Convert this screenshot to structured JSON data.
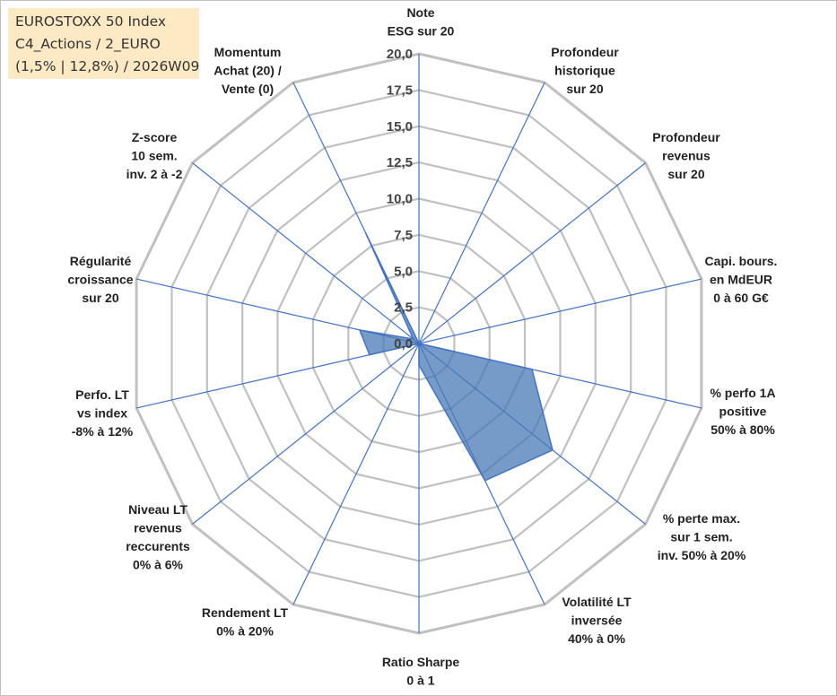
{
  "title_box": {
    "line1": "EUROSTOXX 50 Index",
    "line2": "C4_Actions / 2_EURO",
    "line3": "(1,5% | 12,8%) / 2026W09"
  },
  "chart_data": {
    "type": "radar",
    "rlim": [
      0,
      20
    ],
    "ticks": [
      "0,0",
      "2,5",
      "5,0",
      "7,5",
      "10,0",
      "12,5",
      "15,0",
      "17,5",
      "20,0"
    ],
    "grid": true,
    "grid_color": "#c0c0c0",
    "spoke_color": "#4472c4",
    "series_fill": "#4a7ab5",
    "series_stroke": "#4472c4",
    "categories": [
      {
        "lines": [
          "Note",
          "ESG sur 20"
        ],
        "anchor": "middle"
      },
      {
        "lines": [
          "Profondeur",
          "historique",
          "sur 20"
        ],
        "anchor": "middle"
      },
      {
        "lines": [
          "Profondeur",
          "revenus",
          "sur 20"
        ],
        "anchor": "middle"
      },
      {
        "lines": [
          "Capi. bours.",
          "en MdEUR",
          "0 à 60 G€"
        ],
        "anchor": "middle"
      },
      {
        "lines": [
          "% perfo 1A",
          "positive",
          "50% à 80%"
        ],
        "anchor": "middle"
      },
      {
        "lines": [
          "% perte max.",
          "sur 1 sem.",
          "inv. 50% à 20%"
        ],
        "anchor": "middle"
      },
      {
        "lines": [
          "Volatilité LT",
          "inversée",
          "40% à 0%"
        ],
        "anchor": "middle"
      },
      {
        "lines": [
          "Ratio Sharpe",
          "0 à 1"
        ],
        "anchor": "middle"
      },
      {
        "lines": [
          "Rendement LT",
          "0% à 20%"
        ],
        "anchor": "middle"
      },
      {
        "lines": [
          "Niveau LT",
          "revenus",
          "reccurents",
          "0% à 6%"
        ],
        "anchor": "middle"
      },
      {
        "lines": [
          "Perfo. LT",
          "vs index",
          "-8% à 12%"
        ],
        "anchor": "middle"
      },
      {
        "lines": [
          "Régularité",
          "croissance",
          "sur 20"
        ],
        "anchor": "middle"
      },
      {
        "lines": [
          "Z-score",
          "10 sem.",
          "inv. 2 à -2"
        ],
        "anchor": "middle"
      },
      {
        "lines": [
          "Momentum",
          "Achat (20) /",
          "Vente (0)"
        ],
        "anchor": "middle"
      }
    ],
    "series": [
      {
        "values": [
          0,
          0,
          0,
          0,
          8.0,
          11.8,
          10.5,
          1.5,
          0,
          0,
          3.5,
          4.2,
          0.5,
          8.5
        ]
      }
    ]
  }
}
